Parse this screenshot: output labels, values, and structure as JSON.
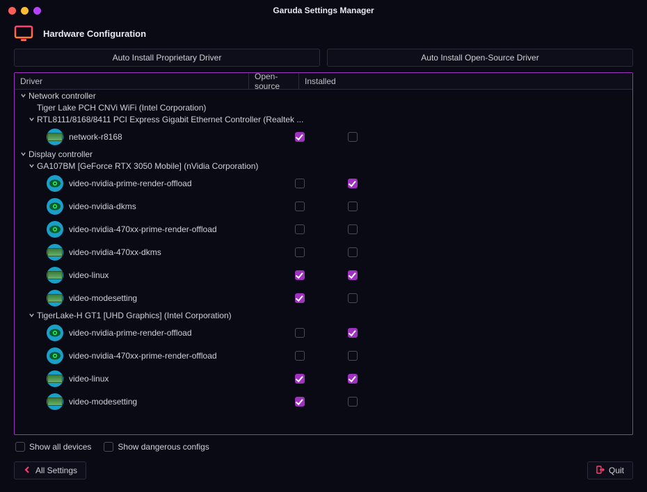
{
  "window": {
    "title": "Garuda Settings Manager"
  },
  "page": {
    "title": "Hardware Configuration"
  },
  "buttons": {
    "install_proprietary": "Auto Install Proprietary Driver",
    "install_opensource": "Auto Install Open-Source Driver",
    "all_settings": "All Settings",
    "quit": "Quit"
  },
  "columns": {
    "driver": "Driver",
    "opensource": "Open-source",
    "installed": "Installed"
  },
  "options": {
    "show_all_devices": "Show all devices",
    "show_dangerous": "Show dangerous configs"
  },
  "tree": {
    "network_controller": {
      "label": "Network controller",
      "wifi": {
        "label": "Tiger Lake PCH CNVi WiFi (Intel Corporation)"
      },
      "realtek": {
        "label": "RTL8111/8168/8411 PCI Express Gigabit Ethernet Controller (Realtek ...",
        "r8168": {
          "label": "network-r8168",
          "opensource": true,
          "installed": false,
          "icon": "card"
        }
      }
    },
    "display_controller": {
      "label": "Display controller",
      "nvidia": {
        "label": "GA107BM [GeForce RTX 3050 Mobile] (nVidia Corporation)",
        "drivers": [
          {
            "label": "video-nvidia-prime-render-offload",
            "opensource": false,
            "installed": true,
            "icon": "eye"
          },
          {
            "label": "video-nvidia-dkms",
            "opensource": false,
            "installed": false,
            "icon": "eye"
          },
          {
            "label": "video-nvidia-470xx-prime-render-offload",
            "opensource": false,
            "installed": false,
            "icon": "eye"
          },
          {
            "label": "video-nvidia-470xx-dkms",
            "opensource": false,
            "installed": false,
            "icon": "card"
          },
          {
            "label": "video-linux",
            "opensource": true,
            "installed": true,
            "icon": "card"
          },
          {
            "label": "video-modesetting",
            "opensource": true,
            "installed": false,
            "icon": "card"
          }
        ]
      },
      "intel": {
        "label": "TigerLake-H GT1 [UHD Graphics] (Intel Corporation)",
        "drivers": [
          {
            "label": "video-nvidia-prime-render-offload",
            "opensource": false,
            "installed": true,
            "icon": "eye"
          },
          {
            "label": "video-nvidia-470xx-prime-render-offload",
            "opensource": false,
            "installed": false,
            "icon": "eye"
          },
          {
            "label": "video-linux",
            "opensource": true,
            "installed": true,
            "icon": "card"
          },
          {
            "label": "video-modesetting",
            "opensource": true,
            "installed": false,
            "icon": "card"
          }
        ]
      }
    }
  },
  "colors": {
    "accent": "#a030c0",
    "bg": "#0a0a14",
    "panel_border": "#2a2a3a"
  }
}
